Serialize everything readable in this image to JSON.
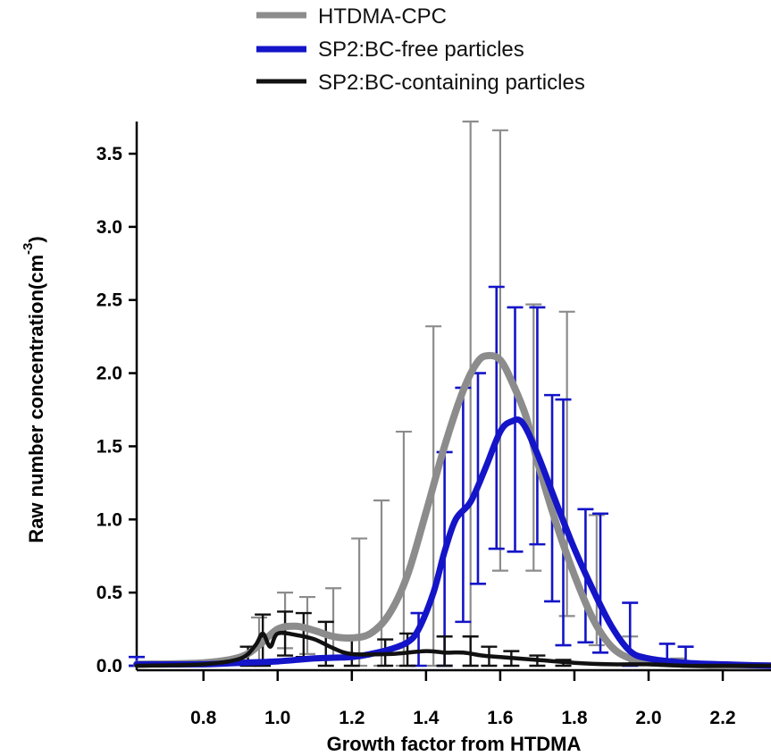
{
  "chart_data": {
    "type": "line",
    "xlabel": "Growth factor from HTDMA",
    "ylabel_main": "Raw number concentration(cm",
    "ylabel_sup": "-3",
    "ylabel_close": ")",
    "xlim": [
      0.62,
      2.33
    ],
    "ylim": [
      0.0,
      3.72
    ],
    "xticks": [
      {
        "value": 0.8,
        "label": "0.8"
      },
      {
        "value": 1.0,
        "label": "1.0"
      },
      {
        "value": 1.2,
        "label": "1.2"
      },
      {
        "value": 1.4,
        "label": "1.4"
      },
      {
        "value": 1.6,
        "label": "1.6"
      },
      {
        "value": 1.8,
        "label": "1.8"
      },
      {
        "value": 2.0,
        "label": "2.0"
      },
      {
        "value": 2.2,
        "label": "2.2"
      }
    ],
    "yticks": [
      {
        "value": 0.0,
        "label": "0.0"
      },
      {
        "value": 0.5,
        "label": "0.5"
      },
      {
        "value": 1.0,
        "label": "1.0"
      },
      {
        "value": 1.5,
        "label": "1.5"
      },
      {
        "value": 2.0,
        "label": "2.0"
      },
      {
        "value": 2.5,
        "label": "2.5"
      },
      {
        "value": 3.0,
        "label": "3.0"
      },
      {
        "value": 3.5,
        "label": "3.5"
      }
    ],
    "legend_position": "top",
    "series": [
      {
        "name": "HTDMA-CPC",
        "color": "#8c8c8c",
        "x": [
          0.62,
          0.8,
          0.9,
          0.95,
          1.0,
          1.05,
          1.1,
          1.15,
          1.2,
          1.25,
          1.3,
          1.35,
          1.4,
          1.45,
          1.5,
          1.54,
          1.57,
          1.6,
          1.63,
          1.67,
          1.7,
          1.75,
          1.8,
          1.85,
          1.9,
          1.95,
          2.0,
          2.1,
          2.2,
          2.33
        ],
        "y": [
          0.01,
          0.02,
          0.06,
          0.14,
          0.25,
          0.27,
          0.24,
          0.2,
          0.19,
          0.22,
          0.35,
          0.62,
          1.05,
          1.5,
          1.88,
          2.08,
          2.12,
          2.09,
          1.95,
          1.7,
          1.4,
          0.98,
          0.62,
          0.32,
          0.13,
          0.05,
          0.02,
          0.01,
          0.0,
          0.0
        ]
      },
      {
        "name": "SP2:BC-free particles",
        "color": "#1414c8",
        "x": [
          0.62,
          0.8,
          0.9,
          1.0,
          1.1,
          1.2,
          1.25,
          1.3,
          1.35,
          1.38,
          1.42,
          1.45,
          1.48,
          1.52,
          1.56,
          1.6,
          1.63,
          1.66,
          1.7,
          1.75,
          1.8,
          1.85,
          1.9,
          1.95,
          2.0,
          2.1,
          2.2,
          2.33
        ],
        "y": [
          0.01,
          0.01,
          0.02,
          0.03,
          0.05,
          0.06,
          0.08,
          0.11,
          0.16,
          0.25,
          0.5,
          0.78,
          1.0,
          1.12,
          1.35,
          1.6,
          1.67,
          1.66,
          1.45,
          1.12,
          0.8,
          0.52,
          0.27,
          0.1,
          0.05,
          0.02,
          0.01,
          0.0
        ]
      },
      {
        "name": "SP2:BC-containing particles",
        "color": "#111111",
        "x": [
          0.62,
          0.8,
          0.9,
          0.94,
          0.96,
          0.98,
          1.0,
          1.05,
          1.1,
          1.15,
          1.2,
          1.3,
          1.4,
          1.45,
          1.5,
          1.55,
          1.6,
          1.7,
          1.8,
          1.9,
          2.0,
          2.1,
          2.2,
          2.33
        ],
        "y": [
          0.0,
          0.01,
          0.05,
          0.14,
          0.22,
          0.13,
          0.22,
          0.21,
          0.18,
          0.12,
          0.08,
          0.08,
          0.1,
          0.09,
          0.09,
          0.07,
          0.06,
          0.04,
          0.02,
          0.01,
          0.01,
          0.0,
          0.0,
          0.0
        ]
      }
    ],
    "error_bars": [
      {
        "series": "HTDMA-CPC",
        "points": [
          {
            "x": 0.95,
            "low": 0.0,
            "high": 0.33
          },
          {
            "x": 1.02,
            "low": 0.12,
            "high": 0.5
          },
          {
            "x": 1.08,
            "low": 0.08,
            "high": 0.47
          },
          {
            "x": 1.15,
            "low": 0.06,
            "high": 0.53
          },
          {
            "x": 1.22,
            "low": 0.0,
            "high": 0.87
          },
          {
            "x": 1.28,
            "low": 0.0,
            "high": 1.13
          },
          {
            "x": 1.34,
            "low": 0.0,
            "high": 1.6
          },
          {
            "x": 1.42,
            "low": 0.0,
            "high": 2.32
          },
          {
            "x": 1.52,
            "low": 0.0,
            "high": 3.72
          },
          {
            "x": 1.6,
            "low": 0.65,
            "high": 3.66
          },
          {
            "x": 1.69,
            "low": 0.65,
            "high": 2.47
          },
          {
            "x": 1.78,
            "low": 0.34,
            "high": 2.42
          },
          {
            "x": 1.86,
            "low": 0.14,
            "high": 1.03
          },
          {
            "x": 1.95,
            "low": 0.0,
            "high": 0.2
          },
          {
            "x": 2.08,
            "low": 0.0,
            "high": 0.05
          }
        ]
      },
      {
        "series": "SP2:BC-free particles",
        "points": [
          {
            "x": 0.62,
            "low": 0.0,
            "high": 0.06
          },
          {
            "x": 1.38,
            "low": 0.0,
            "high": 0.36
          },
          {
            "x": 1.45,
            "low": 0.0,
            "high": 1.46
          },
          {
            "x": 1.5,
            "low": 0.3,
            "high": 1.9
          },
          {
            "x": 1.54,
            "low": 0.56,
            "high": 2.0
          },
          {
            "x": 1.59,
            "low": 0.8,
            "high": 2.59
          },
          {
            "x": 1.64,
            "low": 0.78,
            "high": 2.45
          },
          {
            "x": 1.7,
            "low": 0.83,
            "high": 2.45
          },
          {
            "x": 1.74,
            "low": 0.44,
            "high": 1.85
          },
          {
            "x": 1.77,
            "low": 0.14,
            "high": 1.82
          },
          {
            "x": 1.83,
            "low": 0.16,
            "high": 1.07
          },
          {
            "x": 1.87,
            "low": 0.09,
            "high": 1.04
          },
          {
            "x": 1.95,
            "low": 0.0,
            "high": 0.43
          },
          {
            "x": 2.05,
            "low": 0.0,
            "high": 0.15
          },
          {
            "x": 2.1,
            "low": 0.0,
            "high": 0.13
          }
        ]
      },
      {
        "series": "SP2:BC-containing particles",
        "points": [
          {
            "x": 0.92,
            "low": 0.0,
            "high": 0.13
          },
          {
            "x": 0.96,
            "low": 0.0,
            "high": 0.35
          },
          {
            "x": 1.02,
            "low": 0.07,
            "high": 0.37
          },
          {
            "x": 1.07,
            "low": 0.06,
            "high": 0.36
          },
          {
            "x": 1.13,
            "low": 0.0,
            "high": 0.3
          },
          {
            "x": 1.2,
            "low": 0.0,
            "high": 0.2
          },
          {
            "x": 1.29,
            "low": 0.0,
            "high": 0.18
          },
          {
            "x": 1.35,
            "low": 0.0,
            "high": 0.22
          },
          {
            "x": 1.45,
            "low": 0.0,
            "high": 0.2
          },
          {
            "x": 1.52,
            "low": 0.0,
            "high": 0.2
          },
          {
            "x": 1.57,
            "low": 0.0,
            "high": 0.13
          },
          {
            "x": 1.63,
            "low": 0.0,
            "high": 0.1
          },
          {
            "x": 1.7,
            "low": 0.0,
            "high": 0.07
          },
          {
            "x": 1.77,
            "low": 0.0,
            "high": 0.04
          }
        ]
      }
    ]
  }
}
